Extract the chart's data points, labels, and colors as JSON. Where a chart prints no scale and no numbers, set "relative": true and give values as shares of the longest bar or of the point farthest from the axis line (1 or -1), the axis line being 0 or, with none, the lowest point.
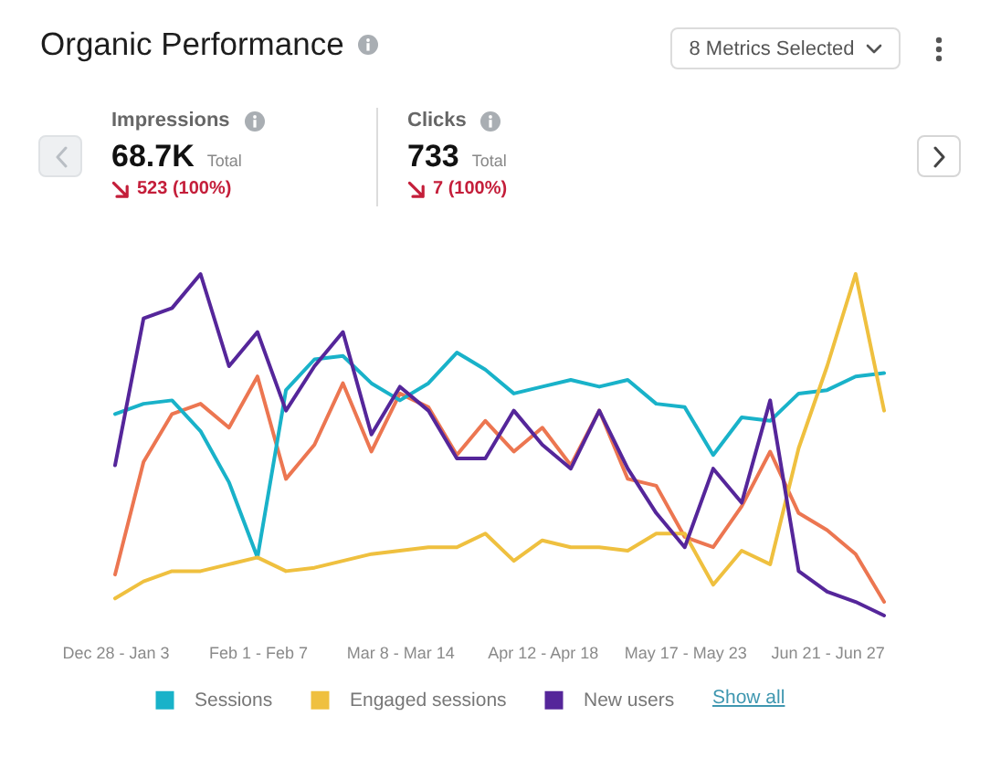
{
  "chart_data": {
    "type": "line",
    "title": "Organic Performance",
    "relative": true,
    "legend": "bottom",
    "categories": [
      "Dec 28 - Jan 3",
      null,
      null,
      null,
      null,
      "Feb 1 - Feb 7",
      null,
      null,
      null,
      null,
      "Mar 8 - Mar 14",
      null,
      null,
      null,
      null,
      "Apr 12 - Apr 18",
      null,
      null,
      null,
      null,
      "May 17 - May 23",
      null,
      null,
      null,
      null,
      "Jun 21 - Jun 27",
      null,
      null
    ],
    "series": [
      {
        "color": "#ec7651",
        "values": [
          0.12,
          0.45,
          0.59,
          0.62,
          0.55,
          0.7,
          0.4,
          0.5,
          0.68,
          0.48,
          0.65,
          0.61,
          0.47,
          0.57,
          0.48,
          0.55,
          0.44,
          0.6,
          0.4,
          0.38,
          0.23,
          0.2,
          0.32,
          0.48,
          0.3,
          0.25,
          0.18,
          0.04
        ]
      },
      {
        "name": "Sessions",
        "color": "#19b2c9",
        "values": [
          0.59,
          0.62,
          0.63,
          0.54,
          0.39,
          0.17,
          0.66,
          0.75,
          0.76,
          0.68,
          0.63,
          0.68,
          0.77,
          0.72,
          0.65,
          0.67,
          0.69,
          0.67,
          0.69,
          0.62,
          0.61,
          0.47,
          0.58,
          0.57,
          0.65,
          0.66,
          0.7,
          0.71
        ]
      },
      {
        "name": "Engaged sessions",
        "color": "#efc03f",
        "values": [
          0.05,
          0.1,
          0.13,
          0.13,
          0.15,
          0.17,
          0.13,
          0.14,
          0.16,
          0.18,
          0.19,
          0.2,
          0.2,
          0.24,
          0.16,
          0.22,
          0.2,
          0.2,
          0.19,
          0.24,
          0.24,
          0.09,
          0.19,
          0.15,
          0.49,
          0.73,
          1.0,
          0.6
        ]
      },
      {
        "name": "New users",
        "color": "#55269a",
        "values": [
          0.44,
          0.87,
          0.9,
          1.0,
          0.73,
          0.83,
          0.6,
          0.73,
          0.83,
          0.53,
          0.67,
          0.6,
          0.46,
          0.46,
          0.6,
          0.5,
          0.43,
          0.6,
          0.43,
          0.3,
          0.2,
          0.43,
          0.33,
          0.63,
          0.13,
          0.07,
          0.04,
          0
        ]
      }
    ],
    "annotations": [
      "8 Metrics Selected",
      "Impressions",
      "68.7K",
      "Total",
      "523 (100%)",
      "Clicks",
      "733",
      "Total",
      "7 (100%)",
      "Show all"
    ]
  }
}
